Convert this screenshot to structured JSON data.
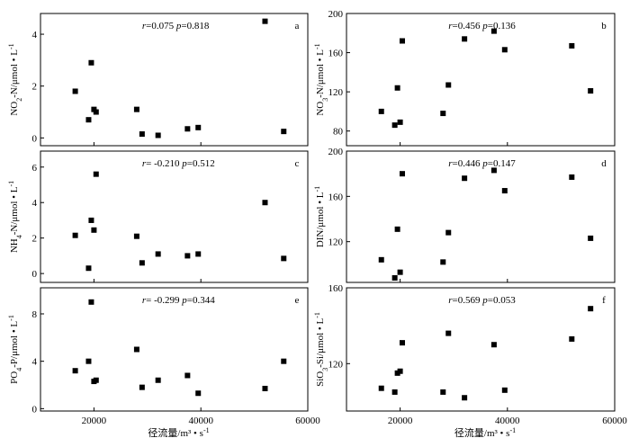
{
  "chart_data": [
    {
      "panel": "a",
      "type": "scatter",
      "ylabel": "NO2-N/μmol • L-1",
      "r": "0.075",
      "p": "0.818",
      "xlim": [
        10000,
        60000
      ],
      "ylim": [
        -0.3,
        4.8
      ],
      "yticks": [
        0,
        2,
        4
      ],
      "xticks": [],
      "points": [
        [
          16500,
          1.8
        ],
        [
          19000,
          0.7
        ],
        [
          19500,
          2.9
        ],
        [
          20000,
          1.1
        ],
        [
          20400,
          1.0
        ],
        [
          28000,
          1.1
        ],
        [
          29000,
          0.15
        ],
        [
          32000,
          0.1
        ],
        [
          37500,
          0.35
        ],
        [
          39500,
          0.4
        ],
        [
          52000,
          4.5
        ],
        [
          55500,
          0.25
        ]
      ]
    },
    {
      "panel": "b",
      "type": "scatter",
      "ylabel": "NO3-N/μmol • L-1",
      "r": "0.456",
      "p": "0.136",
      "xlim": [
        10000,
        60000
      ],
      "ylim": [
        65,
        200
      ],
      "yticks": [
        80,
        120,
        160,
        200
      ],
      "xticks": [],
      "points": [
        [
          16500,
          100
        ],
        [
          19000,
          86
        ],
        [
          19500,
          124
        ],
        [
          20000,
          89
        ],
        [
          20400,
          172
        ],
        [
          28000,
          98
        ],
        [
          29000,
          127
        ],
        [
          32000,
          174
        ],
        [
          37500,
          182
        ],
        [
          39500,
          163
        ],
        [
          52000,
          167
        ],
        [
          55500,
          121
        ]
      ]
    },
    {
      "panel": "c",
      "type": "scatter",
      "ylabel": "NH4-N/μmol • L-1",
      "r": "-0.210",
      "p": "0.512",
      "xlim": [
        10000,
        60000
      ],
      "ylim": [
        -0.5,
        6.9
      ],
      "yticks": [
        0,
        2,
        4,
        6
      ],
      "xticks": [],
      "points": [
        [
          16500,
          2.15
        ],
        [
          19000,
          0.3
        ],
        [
          19500,
          3.0
        ],
        [
          20000,
          2.45
        ],
        [
          20400,
          5.6
        ],
        [
          28000,
          2.1
        ],
        [
          29000,
          0.6
        ],
        [
          32000,
          1.1
        ],
        [
          37500,
          1.0
        ],
        [
          39500,
          1.1
        ],
        [
          52000,
          4.0
        ],
        [
          55500,
          0.85
        ]
      ]
    },
    {
      "panel": "d",
      "type": "scatter",
      "ylabel": "DIN/μmol • L-1",
      "r": "0.446",
      "p": "0.147",
      "xlim": [
        10000,
        60000
      ],
      "ylim": [
        84,
        200
      ],
      "yticks": [
        120,
        160,
        200
      ],
      "xticks": [],
      "points": [
        [
          16500,
          104
        ],
        [
          19000,
          88
        ],
        [
          19500,
          131
        ],
        [
          20000,
          93
        ],
        [
          20400,
          180
        ],
        [
          28000,
          102
        ],
        [
          29000,
          128
        ],
        [
          32000,
          176
        ],
        [
          37500,
          183
        ],
        [
          39500,
          165
        ],
        [
          52000,
          177
        ],
        [
          55500,
          123
        ]
      ]
    },
    {
      "panel": "e",
      "type": "scatter",
      "ylabel": "PO4-P/μmol • L-1",
      "r": "-0.299",
      "p": "0.344",
      "xlabel": "径流量/m³ • s-1",
      "xlim": [
        10000,
        60000
      ],
      "ylim": [
        -0.2,
        10.2
      ],
      "yticks": [
        0,
        4,
        8
      ],
      "xticks": [
        20000,
        40000,
        60000
      ],
      "points": [
        [
          16500,
          3.2
        ],
        [
          19000,
          4.0
        ],
        [
          19500,
          9.0
        ],
        [
          20000,
          2.3
        ],
        [
          20400,
          2.4
        ],
        [
          28000,
          5.0
        ],
        [
          29000,
          1.8
        ],
        [
          32000,
          2.4
        ],
        [
          37500,
          2.8
        ],
        [
          39500,
          1.3
        ],
        [
          52000,
          1.7
        ],
        [
          55500,
          4.0
        ]
      ]
    },
    {
      "panel": "f",
      "type": "scatter",
      "ylabel": "SiO3-Si/μmol • L-1",
      "r": "0.569",
      "p": "0.053",
      "xlabel": "径流量/m³ • s-1",
      "xlim": [
        10000,
        60000
      ],
      "ylim": [
        95,
        160
      ],
      "yticks": [
        120,
        160
      ],
      "xticks": [
        20000,
        40000,
        60000
      ],
      "points": [
        [
          16500,
          107
        ],
        [
          19000,
          105
        ],
        [
          19500,
          115
        ],
        [
          20000,
          116
        ],
        [
          20400,
          131
        ],
        [
          28000,
          105
        ],
        [
          29000,
          136
        ],
        [
          32000,
          102
        ],
        [
          37500,
          130
        ],
        [
          39500,
          106
        ],
        [
          52000,
          133
        ],
        [
          55500,
          149
        ]
      ]
    }
  ]
}
